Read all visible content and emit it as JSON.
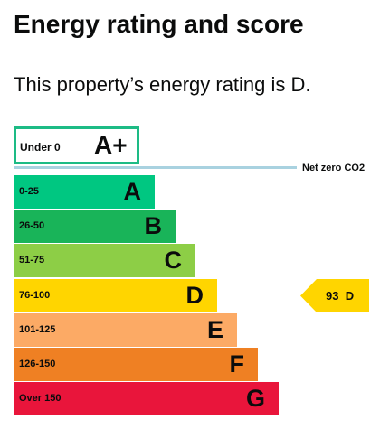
{
  "title": "Energy rating and score",
  "lead": "This property’s energy rating is D.",
  "top_band": {
    "range": "Under 0",
    "letter": "A+",
    "color": "#1dbb85"
  },
  "net_zero": {
    "label": "Net zero CO2",
    "color": "#a9d2e0"
  },
  "bands": [
    {
      "range": "0-25",
      "letter": "A",
      "color": "#00c781"
    },
    {
      "range": "26-50",
      "letter": "B",
      "color": "#19b459"
    },
    {
      "range": "51-75",
      "letter": "C",
      "color": "#8dce46"
    },
    {
      "range": "76-100",
      "letter": "D",
      "color": "#ffd500"
    },
    {
      "range": "101-125",
      "letter": "E",
      "color": "#fcaa65"
    },
    {
      "range": "126-150",
      "letter": "F",
      "color": "#ef8023"
    },
    {
      "range": "Over 150",
      "letter": "G",
      "color": "#e9153b"
    }
  ],
  "current_rating": {
    "score": "93",
    "letter": "D",
    "color": "#ffd500"
  }
}
